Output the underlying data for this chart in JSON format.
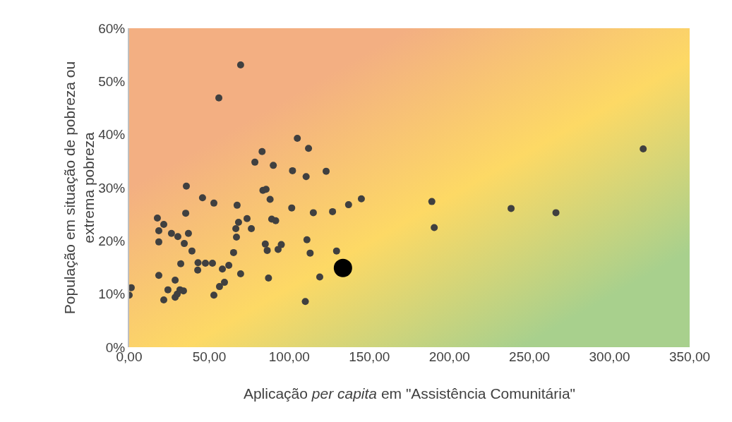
{
  "chart_data": {
    "type": "scatter",
    "xlabel": "Aplicação per capita em \"Assistência Comunitária\"",
    "ylabel": "População em situação de pobreza ou extrema pobreza",
    "xlim": [
      0,
      350
    ],
    "xticks": [
      {
        "value": 0,
        "label": "0,00"
      },
      {
        "value": 50,
        "label": "50,00"
      },
      {
        "value": 100,
        "label": "100,00"
      },
      {
        "value": 150,
        "label": "150,00"
      },
      {
        "value": 200,
        "label": "200,00"
      },
      {
        "value": 250,
        "label": "250,00"
      },
      {
        "value": 300,
        "label": "300,00"
      },
      {
        "value": 350,
        "label": "350,00"
      }
    ],
    "ylim": [
      0,
      60
    ],
    "yticks": [
      {
        "value": 0,
        "label": "0%"
      },
      {
        "value": 10,
        "label": "10%"
      },
      {
        "value": 20,
        "label": "20%"
      },
      {
        "value": 30,
        "label": "30%"
      },
      {
        "value": 40,
        "label": "40%"
      },
      {
        "value": 50,
        "label": "50%"
      },
      {
        "value": 60,
        "label": "60%"
      }
    ],
    "grid": false,
    "marker": "circle",
    "series": [
      {
        "color": "#404040",
        "x": [
          0,
          1.3,
          17.6,
          18.5,
          18.5,
          18.5,
          21.6,
          21.6,
          24.2,
          26.4,
          28.7,
          28.7,
          30.0,
          30.4,
          31.7,
          32.2,
          33.9,
          34.4,
          35.3,
          35.7,
          37.0,
          39.2,
          42.8,
          43.0,
          45.8,
          47.6,
          52.0,
          52.9,
          52.9,
          56.0,
          56.4,
          58.2,
          59.5,
          62.2,
          65.2,
          66.6,
          67.0,
          67.4,
          68.3,
          69.6,
          69.6,
          73.6,
          76.3,
          78.5,
          83.0,
          83.5,
          85.0,
          85.5,
          86.2,
          87.0,
          88.0,
          89.0,
          90.0,
          91.5,
          93.0,
          95.0,
          101.5,
          102.0,
          105.0,
          110.0,
          110.5,
          111.0,
          112.0,
          113.0,
          115.0,
          119.0,
          123.0,
          127.0,
          129.5,
          137.0,
          145.0,
          189.0,
          190.5,
          238.5,
          266.5,
          321.0
        ],
        "values": [
          9.8,
          11.2,
          24.3,
          21.9,
          19.8,
          13.5,
          23.1,
          8.9,
          10.8,
          21.4,
          12.6,
          9.4,
          10.0,
          20.8,
          10.8,
          15.7,
          10.6,
          19.5,
          25.2,
          30.3,
          21.4,
          18.1,
          14.5,
          15.9,
          28.1,
          15.8,
          15.8,
          27.1,
          9.8,
          46.9,
          11.4,
          14.7,
          12.2,
          15.4,
          17.8,
          22.3,
          20.7,
          26.7,
          23.5,
          53.1,
          13.8,
          24.2,
          22.3,
          34.8,
          36.8,
          29.5,
          19.4,
          29.7,
          18.2,
          13.0,
          27.8,
          24.1,
          34.2,
          23.8,
          18.4,
          19.3,
          26.2,
          33.2,
          39.3,
          8.6,
          32.1,
          20.2,
          37.4,
          17.7,
          25.3,
          13.2,
          33.1,
          25.5,
          18.1,
          26.8,
          27.9,
          27.4,
          22.5,
          26.1,
          25.3,
          37.3
        ]
      },
      {
        "color": "#000000",
        "x": [
          133.5
        ],
        "values": [
          14.9
        ]
      }
    ]
  }
}
